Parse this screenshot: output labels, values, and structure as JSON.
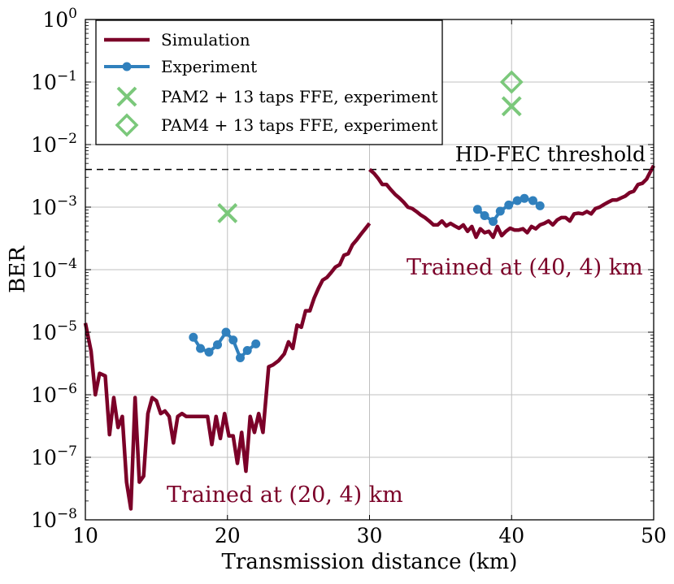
{
  "chart_data": {
    "type": "line",
    "xlabel": "Transmission distance (km)",
    "ylabel": "BER",
    "xlim": [
      10,
      50
    ],
    "ylim": [
      1e-08,
      1
    ],
    "yscale": "log",
    "grid": true,
    "legend_position": "top-left",
    "x_ticks": [
      "10",
      "20",
      "30",
      "40",
      "50"
    ],
    "y_ticks": [
      {
        "base": "10",
        "exp": "0"
      },
      {
        "base": "10",
        "exp": "−1"
      },
      {
        "base": "10",
        "exp": "−2"
      },
      {
        "base": "10",
        "exp": "−3"
      },
      {
        "base": "10",
        "exp": "−4"
      },
      {
        "base": "10",
        "exp": "−5"
      },
      {
        "base": "10",
        "exp": "−6"
      },
      {
        "base": "10",
        "exp": "−7"
      },
      {
        "base": "10",
        "exp": "−8"
      }
    ],
    "threshold": {
      "label": "HD-FEC threshold",
      "value": 0.004
    },
    "annotations": [
      {
        "text": "Trained at (20, 4) km",
        "x": 20.5,
        "y": 1.5e-08
      },
      {
        "text": "Trained at (40, 4) km",
        "x": 40.2,
        "y": 0.0001
      }
    ],
    "colors": {
      "simulation": "#7b0028",
      "experiment": "#3080bd",
      "pam": "#7bc87b",
      "grid": "#c0c0c0",
      "axis": "#000000",
      "annotation": "#7b0028"
    },
    "series": [
      {
        "name": "Simulation",
        "type": "line",
        "segments": [
          [
            [
              10.0,
              1.4e-05
            ],
            [
              10.4,
              5e-06
            ],
            [
              10.7,
              1e-06
            ],
            [
              11.0,
              2.2e-06
            ],
            [
              11.4,
              2e-06
            ],
            [
              11.7,
              2.3e-07
            ],
            [
              12.0,
              9e-07
            ],
            [
              12.3,
              3e-07
            ],
            [
              12.6,
              4.5e-07
            ],
            [
              12.9,
              4e-08
            ],
            [
              13.2,
              1.5e-08
            ],
            [
              13.5,
              9e-07
            ],
            [
              13.8,
              4e-08
            ],
            [
              14.1,
              5e-08
            ],
            [
              14.4,
              5e-07
            ],
            [
              14.7,
              9e-07
            ],
            [
              15.0,
              8e-07
            ],
            [
              15.3,
              5e-07
            ],
            [
              15.6,
              5.5e-07
            ],
            [
              15.9,
              4.5e-07
            ],
            [
              16.2,
              1.7e-07
            ],
            [
              16.5,
              4.5e-07
            ],
            [
              16.8,
              5e-07
            ],
            [
              17.1,
              4.5e-07
            ],
            [
              17.4,
              4.5e-07
            ],
            [
              17.7,
              4.5e-07
            ],
            [
              18.0,
              4.5e-07
            ],
            [
              18.3,
              4.5e-07
            ],
            [
              18.6,
              4.5e-07
            ],
            [
              18.9,
              1.6e-07
            ],
            [
              19.2,
              4.5e-07
            ],
            [
              19.5,
              2e-07
            ],
            [
              19.8,
              5e-07
            ],
            [
              20.1,
              2.2e-07
            ],
            [
              20.4,
              2.2e-07
            ],
            [
              20.7,
              8e-08
            ],
            [
              21.0,
              2.5e-07
            ],
            [
              21.3,
              6e-08
            ],
            [
              21.6,
              4.5e-07
            ],
            [
              21.9,
              2.5e-07
            ],
            [
              22.2,
              5e-07
            ],
            [
              22.5,
              2.5e-07
            ],
            [
              22.9,
              2.8e-06
            ],
            [
              23.2,
              3e-06
            ],
            [
              23.6,
              3.5e-06
            ],
            [
              24.0,
              4.5e-06
            ],
            [
              24.3,
              7e-06
            ],
            [
              24.6,
              5.5e-06
            ],
            [
              24.9,
              1.3e-05
            ],
            [
              25.2,
              1.2e-05
            ],
            [
              25.5,
              2.2e-05
            ],
            [
              25.8,
              2.2e-05
            ],
            [
              26.1,
              3.5e-05
            ],
            [
              26.4,
              5e-05
            ],
            [
              26.7,
              6.8e-05
            ],
            [
              27.0,
              7.5e-05
            ],
            [
              27.3,
              9e-05
            ],
            [
              27.6,
              0.00011
            ],
            [
              27.9,
              0.00012
            ],
            [
              28.2,
              0.00017
            ],
            [
              28.5,
              0.00018
            ],
            [
              28.8,
              0.00025
            ],
            [
              29.1,
              0.0003
            ],
            [
              29.4,
              0.00037
            ],
            [
              29.7,
              0.00045
            ],
            [
              30.0,
              0.00055
            ]
          ],
          [
            [
              30.0,
              0.004
            ],
            [
              30.3,
              0.0035
            ],
            [
              30.6,
              0.0029
            ],
            [
              30.9,
              0.0023
            ],
            [
              31.2,
              0.0023
            ],
            [
              31.5,
              0.0019
            ],
            [
              31.8,
              0.0016
            ],
            [
              32.1,
              0.0014
            ],
            [
              32.4,
              0.0012
            ],
            [
              32.7,
              0.001
            ],
            [
              33.0,
              0.00095
            ],
            [
              33.3,
              0.00085
            ],
            [
              33.6,
              0.00075
            ],
            [
              33.9,
              0.00068
            ],
            [
              34.2,
              0.0006
            ],
            [
              34.5,
              0.00052
            ],
            [
              34.8,
              0.00052
            ],
            [
              35.1,
              0.0006
            ],
            [
              35.4,
              0.0005
            ],
            [
              35.7,
              0.00055
            ],
            [
              36.0,
              0.0005
            ],
            [
              36.3,
              0.00046
            ],
            [
              36.6,
              0.00052
            ],
            [
              36.9,
              0.00041
            ],
            [
              37.2,
              0.00049
            ],
            [
              37.5,
              0.00033
            ],
            [
              37.8,
              0.00045
            ],
            [
              38.1,
              0.00039
            ],
            [
              38.4,
              0.00041
            ],
            [
              38.7,
              0.00033
            ],
            [
              39.0,
              0.00049
            ],
            [
              39.3,
              0.00035
            ],
            [
              39.6,
              0.00041
            ],
            [
              39.9,
              0.00046
            ],
            [
              40.2,
              0.00043
            ],
            [
              40.5,
              0.00043
            ],
            [
              40.8,
              0.00045
            ],
            [
              41.1,
              0.00039
            ],
            [
              41.4,
              0.00049
            ],
            [
              41.7,
              0.00045
            ],
            [
              42.0,
              0.00052
            ],
            [
              42.3,
              0.00055
            ],
            [
              42.6,
              0.0006
            ],
            [
              42.9,
              0.00052
            ],
            [
              43.2,
              0.00062
            ],
            [
              43.5,
              0.00068
            ],
            [
              43.8,
              0.00068
            ],
            [
              44.1,
              0.0006
            ],
            [
              44.4,
              0.00078
            ],
            [
              44.7,
              0.0008
            ],
            [
              45.0,
              0.00078
            ],
            [
              45.3,
              0.00085
            ],
            [
              45.6,
              0.00078
            ],
            [
              45.9,
              0.00095
            ],
            [
              46.2,
              0.001
            ],
            [
              46.5,
              0.0011
            ],
            [
              46.8,
              0.0012
            ],
            [
              47.1,
              0.0013
            ],
            [
              47.4,
              0.0013
            ],
            [
              47.7,
              0.0014
            ],
            [
              48.0,
              0.0015
            ],
            [
              48.3,
              0.0017
            ],
            [
              48.6,
              0.0018
            ],
            [
              48.9,
              0.0023
            ],
            [
              49.2,
              0.0024
            ],
            [
              49.5,
              0.0028
            ],
            [
              49.8,
              0.0038
            ],
            [
              50.0,
              0.0046
            ]
          ]
        ]
      },
      {
        "name": "Experiment",
        "type": "line-marker",
        "segments": [
          [
            [
              17.6,
              8.3e-06
            ],
            [
              18.1,
              5.5e-06
            ],
            [
              18.7,
              4.8e-06
            ],
            [
              19.3,
              6.3e-06
            ],
            [
              19.9,
              1e-05
            ],
            [
              20.4,
              7.5e-06
            ],
            [
              20.9,
              3.9e-06
            ],
            [
              21.4,
              5.1e-06
            ],
            [
              22.0,
              6.5e-06
            ]
          ],
          [
            [
              37.6,
              0.00092
            ],
            [
              38.1,
              0.00073
            ],
            [
              38.7,
              0.00059
            ],
            [
              39.2,
              0.00086
            ],
            [
              39.8,
              0.00108
            ],
            [
              40.4,
              0.00127
            ],
            [
              40.9,
              0.00138
            ],
            [
              41.5,
              0.00127
            ],
            [
              42.0,
              0.00105
            ]
          ]
        ]
      },
      {
        "name": "PAM2 + 13 taps FFE, experiment",
        "type": "marker-x",
        "points": [
          [
            20,
            0.0008
          ],
          [
            40,
            0.041
          ]
        ]
      },
      {
        "name": "PAM4 + 13 taps FFE, experiment",
        "type": "marker-diamond",
        "points": [
          [
            40,
            0.1
          ]
        ]
      }
    ]
  }
}
